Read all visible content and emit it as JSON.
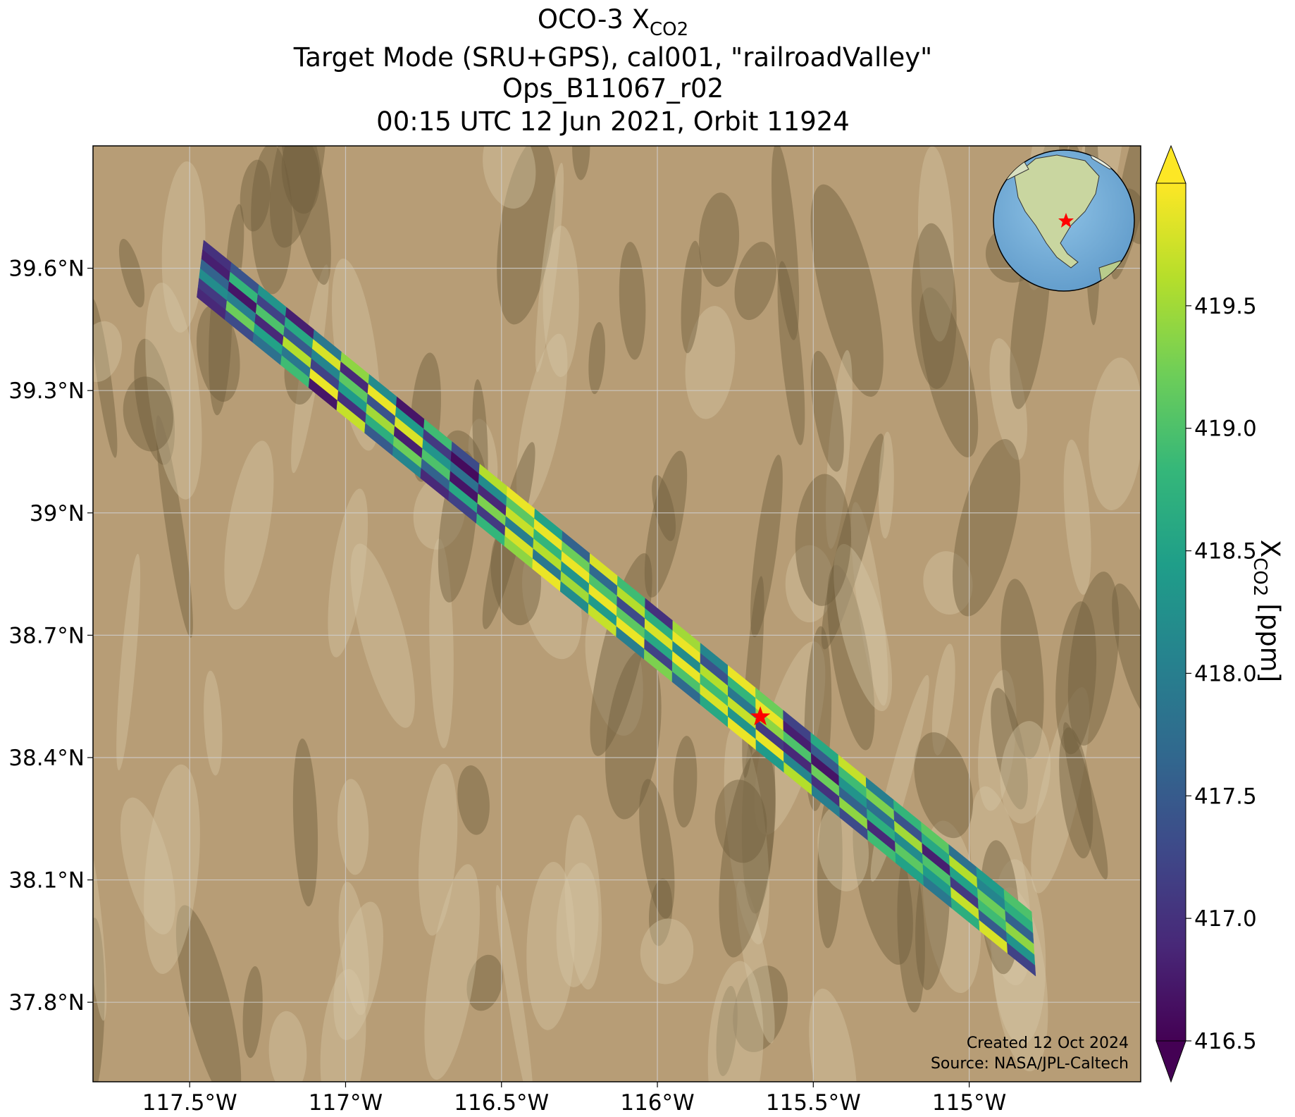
{
  "chart_data": {
    "type": "map",
    "title": {
      "main": "OCO-3 X",
      "sub": "CO2"
    },
    "subtitles": [
      "Target Mode (SRU+GPS), cal001, \"railroadValley\"",
      "Ops_B11067_r02",
      "00:15 UTC 12 Jun 2021, Orbit 11924"
    ],
    "xlim": [
      -117.81,
      -114.45
    ],
    "ylim": [
      37.605,
      39.9
    ],
    "xticks": [
      {
        "value": -117.5,
        "label": "117.5°W"
      },
      {
        "value": -117,
        "label": "117°W"
      },
      {
        "value": -116.5,
        "label": "116.5°W"
      },
      {
        "value": -116,
        "label": "116°W"
      },
      {
        "value": -115.5,
        "label": "115.5°W"
      },
      {
        "value": -115,
        "label": "115°W"
      }
    ],
    "yticks": [
      {
        "value": 37.8,
        "label": "37.8°N"
      },
      {
        "value": 38.1,
        "label": "38.1°N"
      },
      {
        "value": 38.4,
        "label": "38.4°N"
      },
      {
        "value": 38.7,
        "label": "38.7°N"
      },
      {
        "value": 39,
        "label": "39°N"
      },
      {
        "value": 39.3,
        "label": "39.3°N"
      },
      {
        "value": 39.6,
        "label": "39.6°N"
      }
    ],
    "grid": true,
    "colorbar": {
      "label_main": "X",
      "label_sub": "CO2",
      "label_unit": "[ppm]",
      "colormap": "viridis",
      "clim": [
        416.5,
        420
      ],
      "ticks": [
        416.5,
        {
          "value": 417,
          "label": "417.0"
        },
        417.5,
        {
          "value": 418,
          "label": "418.0"
        },
        418.5,
        {
          "value": 419,
          "label": "419.0"
        },
        419.5
      ]
    },
    "swath": {
      "corners": [
        [
          -117.455,
          39.669
        ],
        [
          -117.477,
          39.529
        ],
        [
          -114.787,
          37.864
        ],
        [
          -114.8,
          38.022
        ]
      ],
      "xco2": [
        [
          417.0,
          416.8,
          417.6,
          418.2,
          417.1,
          416.9
        ],
        [
          417.4,
          418.8,
          416.7,
          418.0,
          419.2,
          417.3
        ],
        [
          418.3,
          417.2,
          419.0,
          416.9,
          418.5,
          417.8
        ],
        [
          416.8,
          418.6,
          417.5,
          419.6,
          417.9,
          418.9
        ],
        [
          417.9,
          419.8,
          418.1,
          417.2,
          419.9,
          416.7
        ],
        [
          419.4,
          416.9,
          419.1,
          418.4,
          417.0,
          419.7
        ],
        [
          418.2,
          419.9,
          417.4,
          419.5,
          418.7,
          417.5
        ],
        [
          416.7,
          418.4,
          419.8,
          416.8,
          419.2,
          418.1
        ],
        [
          418.9,
          417.1,
          418.3,
          419.0,
          417.6,
          416.9
        ],
        [
          417.3,
          416.6,
          417.8,
          416.7,
          418.6,
          417.2
        ],
        [
          419.6,
          418.2,
          416.9,
          419.3,
          417.1,
          418.8
        ],
        [
          419.9,
          419.1,
          419.7,
          418.0,
          419.8,
          419.4
        ],
        [
          418.5,
          419.9,
          418.8,
          419.6,
          417.9,
          419.9
        ],
        [
          417.6,
          419.2,
          419.9,
          418.3,
          419.5,
          418.2
        ],
        [
          419.8,
          417.7,
          419.0,
          419.9,
          418.4,
          419.7
        ],
        [
          418.9,
          419.6,
          417.3,
          419.1,
          419.9,
          418.0
        ],
        [
          417.0,
          418.7,
          419.8,
          418.6,
          417.2,
          419.3
        ],
        [
          419.5,
          419.9,
          418.2,
          419.9,
          419.0,
          417.7
        ],
        [
          418.1,
          417.4,
          419.6,
          418.9,
          419.8,
          418.6
        ],
        [
          419.9,
          418.8,
          417.9,
          419.7,
          418.3,
          419.9
        ],
        [
          419.2,
          419.9,
          419.4,
          417.1,
          419.9,
          418.4
        ],
        [
          417.2,
          416.8,
          419.0,
          416.9,
          418.1,
          419.6
        ],
        [
          418.6,
          417.5,
          416.7,
          419.2,
          417.0,
          418.0
        ],
        [
          419.7,
          418.9,
          418.3,
          417.6,
          419.4,
          417.3
        ],
        [
          418.0,
          419.3,
          417.8,
          418.7,
          416.9,
          418.9
        ],
        [
          418.8,
          417.4,
          419.5,
          418.2,
          419.1,
          418.5
        ],
        [
          419.1,
          418.6,
          416.8,
          419.0,
          418.4,
          417.9
        ],
        [
          417.8,
          419.6,
          418.5,
          417.1,
          419.7,
          418.7
        ],
        [
          418.4,
          418.1,
          419.2,
          418.9,
          417.5,
          419.8
        ],
        [
          419.0,
          418.7,
          417.6,
          419.4,
          418.3,
          417.2
        ]
      ]
    },
    "target": {
      "lon": -115.67,
      "lat": 38.5
    },
    "credits": [
      "Created 12 Oct 2024",
      "Source: NASA/JPL-Caltech"
    ]
  }
}
